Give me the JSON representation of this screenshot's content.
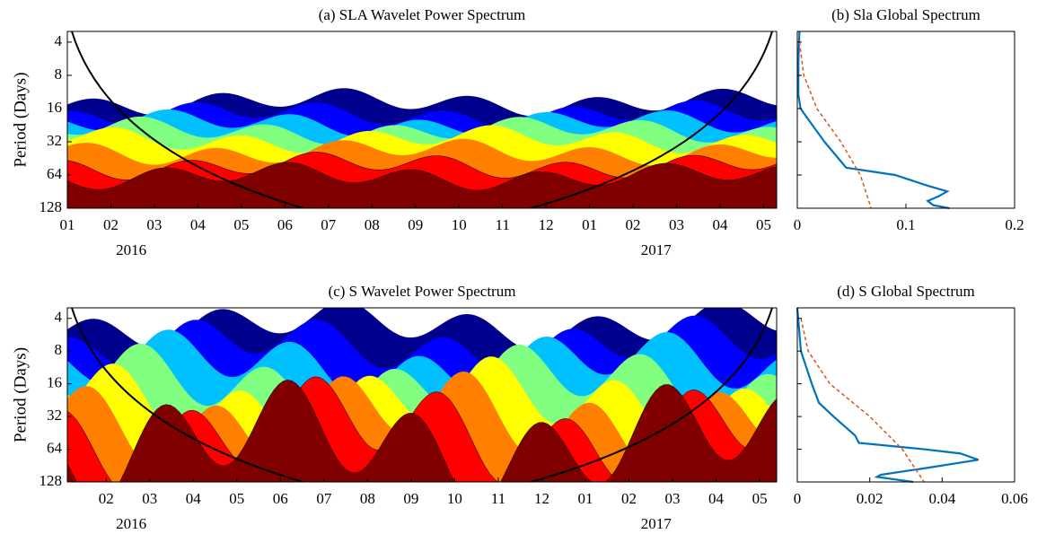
{
  "chart_data": [
    {
      "type": "wavelet",
      "title": "(a) SLA Wavelet Power Spectrum",
      "ylabel": "Period (Days)",
      "xlim": [
        0,
        16.3
      ],
      "xticks": [
        {
          "value": 0,
          "label": "01"
        },
        {
          "value": 1,
          "label": "02"
        },
        {
          "value": 2,
          "label": "03"
        },
        {
          "value": 3,
          "label": "04"
        },
        {
          "value": 4,
          "label": "05"
        },
        {
          "value": 5,
          "label": "06"
        },
        {
          "value": 6,
          "label": "07"
        },
        {
          "value": 7,
          "label": "08"
        },
        {
          "value": 8,
          "label": "09"
        },
        {
          "value": 9,
          "label": "10"
        },
        {
          "value": 10,
          "label": "11"
        },
        {
          "value": 11,
          "label": "12"
        },
        {
          "value": 12,
          "label": "01"
        },
        {
          "value": 13,
          "label": "02"
        },
        {
          "value": 14,
          "label": "03"
        },
        {
          "value": 15,
          "label": "04"
        },
        {
          "value": 16,
          "label": "05"
        }
      ],
      "years": [
        "2016",
        "2017"
      ],
      "ylim": [
        3.2,
        128
      ],
      "yscale": "log2",
      "yticks": [
        4,
        8,
        16,
        32,
        64,
        128
      ]
    },
    {
      "type": "global",
      "title": "(b) Sla Global Spectrum",
      "xlim": [
        0,
        0.2
      ],
      "xticks": [
        0,
        0.1,
        0.2
      ],
      "ylim": [
        3.2,
        128
      ],
      "yscale": "log2",
      "yticks": [
        4,
        8,
        16,
        32,
        64,
        128
      ],
      "series": [
        {
          "color": "#0072bd",
          "dash": false,
          "x": [
            0.002,
            0.001,
            0.001,
            0.003,
            0.01,
            0.025,
            0.04,
            0.045,
            0.09,
            0.12,
            0.138,
            0.13,
            0.12,
            0.125,
            0.14
          ],
          "y": [
            3.2,
            6,
            12,
            16,
            20,
            32,
            48,
            55,
            64,
            80,
            90,
            100,
            110,
            120,
            128
          ]
        },
        {
          "color": "#d95319",
          "dash": true,
          "x": [
            0.002,
            0.006,
            0.018,
            0.04,
            0.058,
            0.068
          ],
          "y": [
            4,
            8,
            16,
            32,
            64,
            128
          ]
        }
      ]
    },
    {
      "type": "wavelet",
      "title": "(c) S Wavelet Power Spectrum",
      "ylabel": "Period (Days)",
      "xlim": [
        0.11,
        16.39
      ],
      "xticks": [
        {
          "value": 1,
          "label": "02"
        },
        {
          "value": 2,
          "label": "03"
        },
        {
          "value": 3,
          "label": "04"
        },
        {
          "value": 4,
          "label": "05"
        },
        {
          "value": 5,
          "label": "06"
        },
        {
          "value": 6,
          "label": "07"
        },
        {
          "value": 7,
          "label": "08"
        },
        {
          "value": 8,
          "label": "09"
        },
        {
          "value": 9,
          "label": "10"
        },
        {
          "value": 10,
          "label": "11"
        },
        {
          "value": 11,
          "label": "12"
        },
        {
          "value": 12,
          "label": "01"
        },
        {
          "value": 13,
          "label": "02"
        },
        {
          "value": 14,
          "label": "03"
        },
        {
          "value": 15,
          "label": "04"
        },
        {
          "value": 16,
          "label": "05"
        }
      ],
      "years": [
        "2016",
        "2017"
      ],
      "ylim": [
        3.2,
        128
      ],
      "yscale": "log2",
      "yticks": [
        4,
        8,
        16,
        32,
        64,
        128
      ]
    },
    {
      "type": "global",
      "title": "(d) S Global Spectrum",
      "xlim": [
        0,
        0.06
      ],
      "xticks": [
        0,
        0.02,
        0.04,
        0.06
      ],
      "ylim": [
        3.2,
        128
      ],
      "yscale": "log2",
      "yticks": [
        4,
        8,
        16,
        32,
        64,
        128
      ],
      "series": [
        {
          "color": "#0072bd",
          "dash": false,
          "x": [
            0,
            0.001,
            0.004,
            0.006,
            0.01,
            0.016,
            0.017,
            0.035,
            0.045,
            0.05,
            0.035,
            0.023,
            0.022,
            0.032
          ],
          "y": [
            3.2,
            8,
            16,
            24,
            32,
            48,
            56,
            64,
            70,
            80,
            96,
            110,
            115,
            128
          ]
        },
        {
          "color": "#d95319",
          "dash": true,
          "x": [
            0.001,
            0.003,
            0.009,
            0.02,
            0.029,
            0.035
          ],
          "y": [
            4,
            8,
            16,
            32,
            64,
            128
          ]
        }
      ]
    }
  ]
}
